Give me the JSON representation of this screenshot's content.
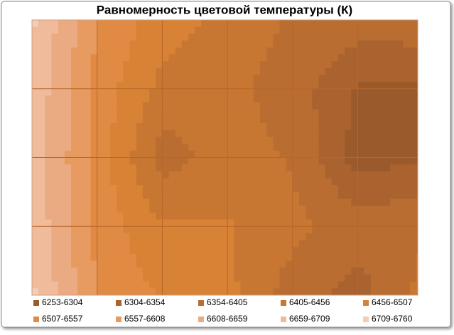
{
  "chart_data": {
    "type": "contour",
    "title": "Равномерность цветовой температуры (К)",
    "z": [
      [
        6720,
        6560,
        6480,
        6440,
        6400,
        6380,
        6390
      ],
      [
        6700,
        6540,
        6440,
        6420,
        6380,
        6300,
        6290
      ],
      [
        6690,
        6540,
        6380,
        6430,
        6400,
        6280,
        6300
      ],
      [
        6700,
        6540,
        6460,
        6460,
        6420,
        6380,
        6400
      ],
      [
        6720,
        6560,
        6500,
        6470,
        6380,
        6330,
        6420
      ]
    ],
    "series": [
      {
        "name": "6253-6304",
        "color": "#9b5a2b"
      },
      {
        "name": "6304-6354",
        "color": "#aa632e"
      },
      {
        "name": "6354-6405",
        "color": "#b96d31"
      },
      {
        "name": "6405-6456",
        "color": "#c87733"
      },
      {
        "name": "6456-6507",
        "color": "#d88236"
      },
      {
        "name": "6507-6557",
        "color": "#e18a43"
      },
      {
        "name": "6557-6608",
        "color": "#e79b60"
      },
      {
        "name": "6608-6659",
        "color": "#ebab82"
      },
      {
        "name": "6659-6709",
        "color": "#f0bb9b"
      },
      {
        "name": "6709-6760",
        "color": "#f4cdb6"
      }
    ],
    "legend": "bottom"
  }
}
